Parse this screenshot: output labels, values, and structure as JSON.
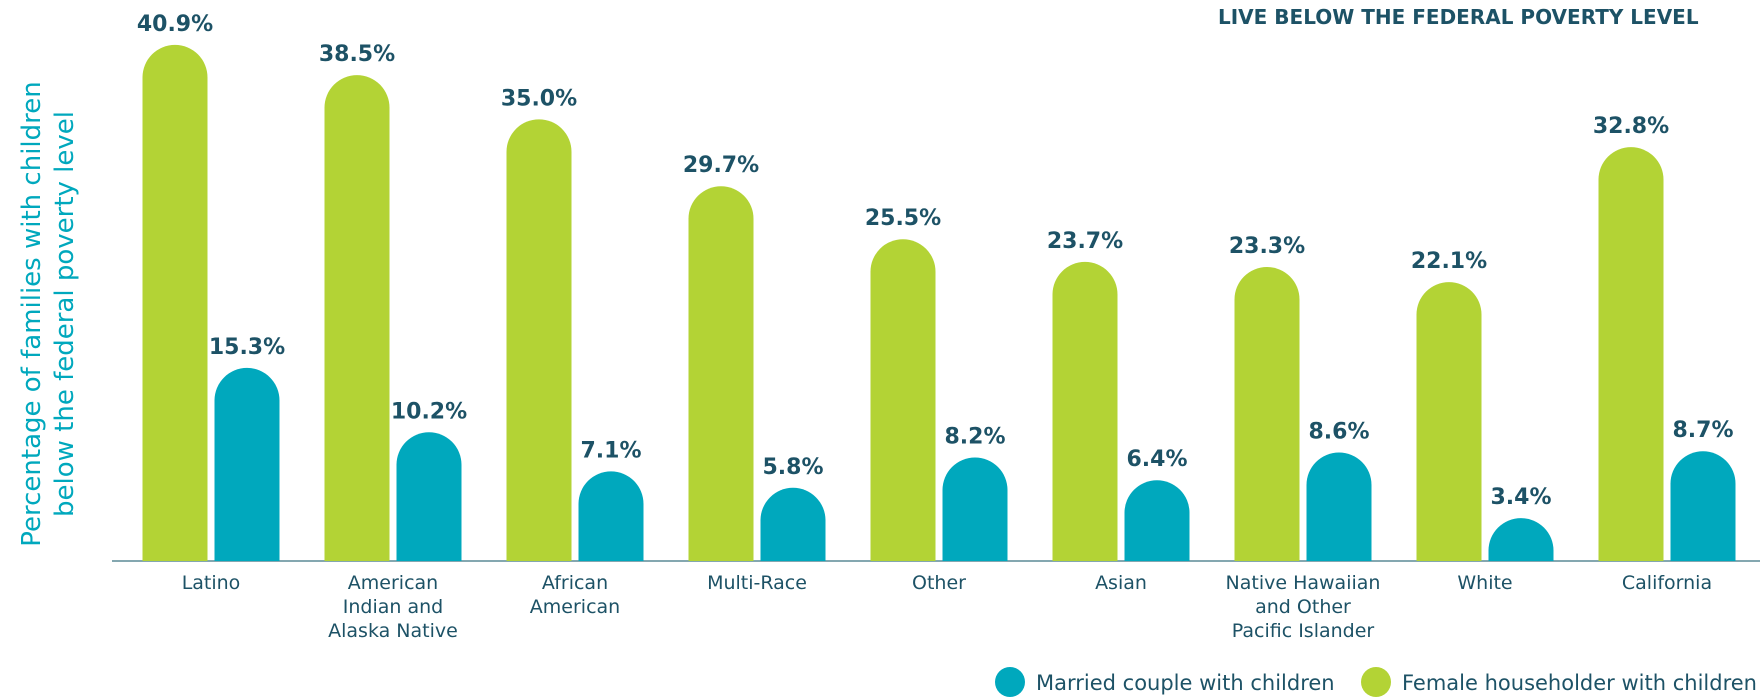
{
  "chart_data": {
    "type": "bar",
    "title": "LIVE BELOW THE FEDERAL POVERTY LEVEL",
    "y_label": [
      "Percentage of families with children",
      "below the federal poverty level"
    ],
    "categories": [
      "Latino",
      "American\nIndian and\nAlaska Native",
      "African\nAmerican",
      "Multi-Race",
      "Other",
      "Asian",
      "Native Hawaiian\nand Other\nPacific Islander",
      "White",
      "California"
    ],
    "series": [
      {
        "name": "Married couple with children",
        "color": "#00a8bd",
        "values": [
          15.3,
          10.2,
          7.1,
          5.8,
          8.2,
          6.4,
          8.6,
          3.4,
          8.7
        ],
        "value_labels": [
          "15.3%",
          "10.2%",
          "7.1%",
          "5.8%",
          "8.2%",
          "6.4%",
          "8.6%",
          "3.4%",
          "8.7%"
        ]
      },
      {
        "name": "Female householder with children",
        "color": "#b3d335",
        "values": [
          40.9,
          38.5,
          35.0,
          29.7,
          25.5,
          23.7,
          23.3,
          22.1,
          32.8
        ],
        "value_labels": [
          "40.9%",
          "38.5%",
          "35.0%",
          "29.7%",
          "25.5%",
          "23.7%",
          "23.3%",
          "22.1%",
          "32.8%"
        ]
      }
    ],
    "ylim": [
      0,
      42
    ]
  }
}
